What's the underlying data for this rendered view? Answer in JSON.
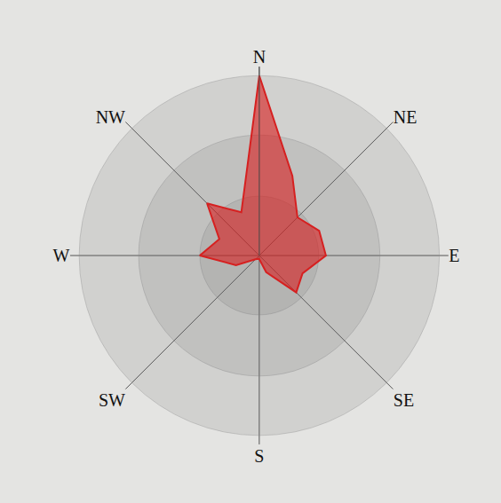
{
  "chart_data": {
    "type": "radar",
    "categories": [
      "N",
      null,
      "NE",
      null,
      "E",
      null,
      "SE",
      null,
      "S",
      null,
      "SW",
      null,
      "W",
      null,
      "NW",
      null
    ],
    "values": [
      100,
      48,
      30,
      36,
      37,
      26,
      29,
      10,
      2,
      2,
      3,
      14,
      33,
      24,
      41,
      26
    ],
    "color": "#d62020",
    "ylim": [
      0,
      105
    ],
    "yticks": [
      33,
      67,
      100
    ],
    "grid": true,
    "tick_labels": "x"
  }
}
